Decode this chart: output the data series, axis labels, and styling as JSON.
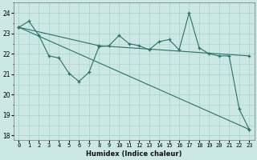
{
  "xlabel": "Humidex (Indice chaleur)",
  "bg_color": "#cce8e4",
  "grid_color": "#aad4d0",
  "line_color": "#2a7068",
  "xlim": [
    -0.5,
    23.5
  ],
  "ylim": [
    17.8,
    24.5
  ],
  "yticks": [
    18,
    19,
    20,
    21,
    22,
    23,
    24
  ],
  "xticks": [
    0,
    1,
    2,
    3,
    4,
    5,
    6,
    7,
    8,
    9,
    10,
    11,
    12,
    13,
    14,
    15,
    16,
    17,
    18,
    19,
    20,
    21,
    22,
    23
  ],
  "series1_x": [
    0,
    1,
    2,
    3,
    4,
    5,
    6,
    7,
    8,
    9,
    10,
    11,
    12,
    13,
    14,
    15,
    16,
    17,
    18,
    19,
    20,
    21,
    22,
    23
  ],
  "series1_y": [
    23.3,
    23.6,
    22.9,
    21.9,
    21.8,
    21.05,
    20.65,
    21.1,
    22.35,
    22.4,
    22.9,
    22.5,
    22.4,
    22.2,
    22.6,
    22.7,
    22.2,
    24.0,
    22.3,
    22.0,
    21.9,
    21.9,
    19.3,
    18.3
  ],
  "series2_x": [
    0,
    8,
    23
  ],
  "series2_y": [
    23.3,
    22.4,
    21.9
  ],
  "series3_x": [
    0,
    23
  ],
  "series3_y": [
    23.3,
    18.3
  ]
}
